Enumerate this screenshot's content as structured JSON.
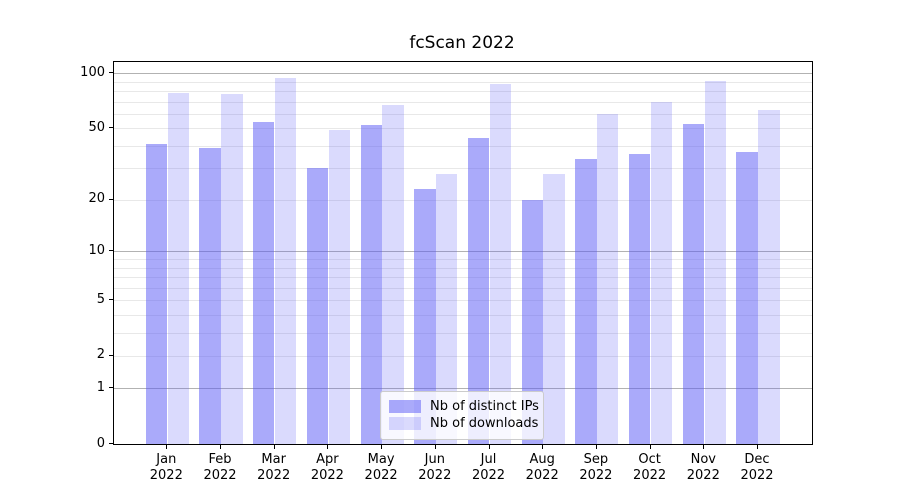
{
  "title": "fcScan 2022",
  "chart_data": {
    "type": "bar",
    "title": "fcScan 2022",
    "xlabel": "",
    "ylabel": "",
    "yscale": "log1p",
    "ylim": [
      0,
      115
    ],
    "yticks": [
      0,
      1,
      2,
      5,
      10,
      20,
      50,
      100
    ],
    "grid": {
      "major_values": [
        1,
        10,
        100
      ],
      "minor_values": [
        2,
        3,
        4,
        5,
        6,
        7,
        8,
        9,
        20,
        30,
        40,
        50,
        60,
        70,
        80,
        90
      ]
    },
    "categories": [
      "Jan",
      "Feb",
      "Mar",
      "Apr",
      "May",
      "Jun",
      "Jul",
      "Aug",
      "Sep",
      "Oct",
      "Nov",
      "Dec"
    ],
    "category_year": "2022",
    "series": [
      {
        "name": "Nb of distinct IPs",
        "color": "rgba(85,85,245,0.50)",
        "values": [
          41,
          39,
          54,
          30,
          52,
          23,
          44,
          20,
          34,
          36,
          53,
          37
        ]
      },
      {
        "name": "Nb of downloads",
        "color": "rgba(85,85,245,0.22)",
        "values": [
          78,
          77,
          94,
          49,
          67,
          28,
          88,
          28,
          60,
          70,
          91,
          63
        ]
      }
    ],
    "legend_position": "lower center"
  },
  "colors": {
    "grid_major": "#b2b2b2",
    "grid_minor": "#e8e8e8",
    "axis": "#000000",
    "background": "#ffffff"
  }
}
